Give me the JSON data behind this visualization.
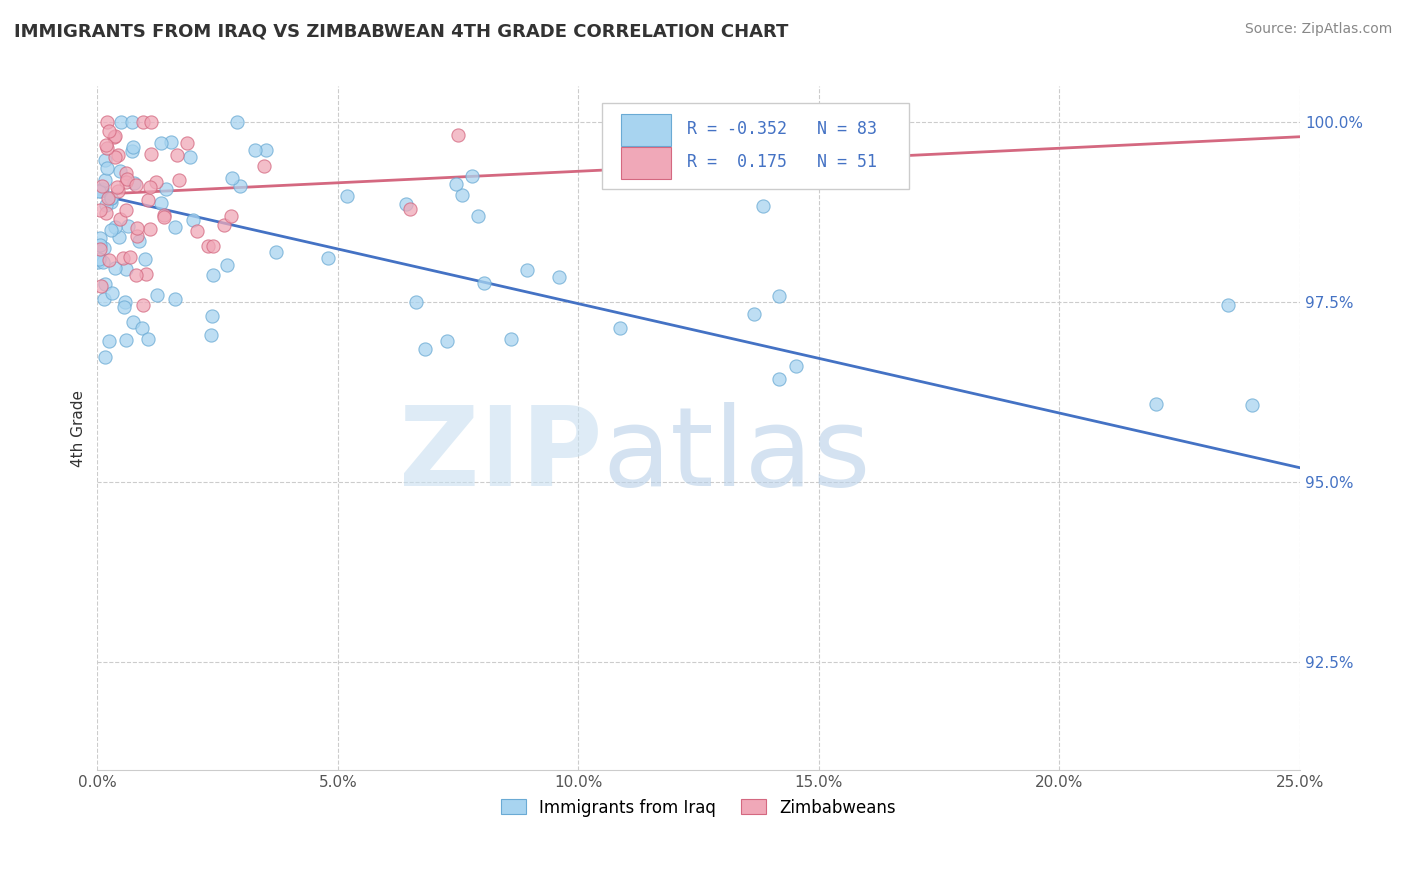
{
  "title": "IMMIGRANTS FROM IRAQ VS ZIMBABWEAN 4TH GRADE CORRELATION CHART",
  "source": "Source: ZipAtlas.com",
  "ylabel": "4th Grade",
  "xlim": [
    0.0,
    0.25
  ],
  "ylim": [
    0.91,
    1.005
  ],
  "xtick_labels": [
    "0.0%",
    "5.0%",
    "10.0%",
    "15.0%",
    "20.0%",
    "25.0%"
  ],
  "yticks": [
    0.925,
    0.95,
    0.975,
    1.0
  ],
  "ytick_labels": [
    "92.5%",
    "95.0%",
    "97.5%",
    "100.0%"
  ],
  "blue_R": -0.352,
  "blue_N": 83,
  "pink_R": 0.175,
  "pink_N": 51,
  "blue_color": "#a8d4f0",
  "pink_color": "#f0a8b8",
  "blue_edge_color": "#6aaad4",
  "pink_edge_color": "#d46880",
  "blue_line_color": "#4472c4",
  "pink_line_color": "#d46880",
  "watermark_zip_color": "#c8dff0",
  "watermark_atlas_color": "#b8d0e8"
}
